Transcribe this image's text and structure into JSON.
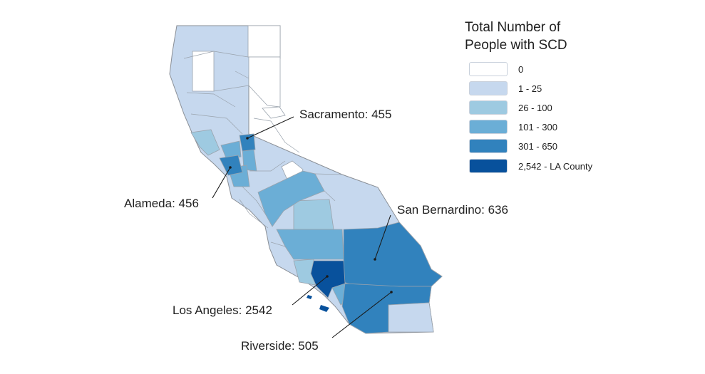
{
  "legend": {
    "title_line1": "Total Number of",
    "title_line2": "People with SCD",
    "items": [
      {
        "label": "0",
        "color": "#ffffff"
      },
      {
        "label": "1 - 25",
        "color": "#c6d8ee"
      },
      {
        "label": "26 - 100",
        "color": "#9ecae1"
      },
      {
        "label": "101 - 300",
        "color": "#6baed6"
      },
      {
        "label": "301 - 650",
        "color": "#3182bd"
      },
      {
        "label": "2,542 - LA County",
        "color": "#08519c"
      }
    ]
  },
  "callouts": {
    "sacramento": "Sacramento: 455",
    "alameda": "Alameda: 456",
    "san_bernardino": "San Bernardino: 636",
    "los_angeles": "Los Angeles: 2542",
    "riverside": "Riverside: 505"
  },
  "colors": {
    "border": "#9aa3ad",
    "outline": "#8a8f96",
    "leader": "#1a1a1a"
  }
}
